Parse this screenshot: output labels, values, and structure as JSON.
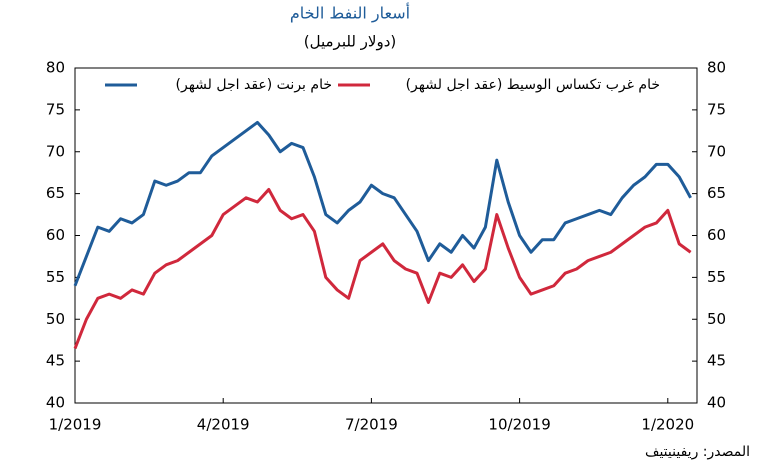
{
  "chart_data": {
    "type": "line",
    "title": "أسعار النفط الخام",
    "subtitle": "(دولار للبرميل)",
    "source": "المصدر: ريفينيتيف",
    "categories": [
      "1/2019",
      null,
      null,
      null,
      null,
      null,
      null,
      null,
      null,
      null,
      null,
      null,
      null,
      "4/2019",
      null,
      null,
      null,
      null,
      null,
      null,
      null,
      null,
      null,
      null,
      null,
      null,
      "7/2019",
      null,
      null,
      null,
      null,
      null,
      null,
      null,
      null,
      null,
      null,
      null,
      null,
      "10/2019",
      null,
      null,
      null,
      null,
      null,
      null,
      null,
      null,
      null,
      null,
      null,
      null,
      "1/2020",
      null,
      null
    ],
    "series": [
      {
        "name": "خام برنت (عقد اجل لشهر)",
        "color": "#1f5c99",
        "values": [
          54,
          57.5,
          61,
          60.5,
          62,
          61.5,
          62.5,
          66.5,
          66,
          66.5,
          67.5,
          67.5,
          69.5,
          70.5,
          71.5,
          72.5,
          73.5,
          72,
          70,
          71,
          70.5,
          67,
          62.5,
          61.5,
          63,
          64,
          66,
          65,
          64.5,
          62.5,
          60.5,
          57,
          59,
          58,
          60,
          58.5,
          61,
          69,
          64,
          60,
          58,
          59.5,
          59.5,
          61.5,
          62,
          62.5,
          63,
          62.5,
          64.5,
          66,
          67,
          68.5,
          68.5,
          67,
          64.5
        ]
      },
      {
        "name": "خام غرب تكساس الوسيط (عقد اجل لشهر)",
        "color": "#d0283c",
        "values": [
          46.5,
          50,
          52.5,
          53,
          52.5,
          53.5,
          53,
          55.5,
          56.5,
          57,
          58,
          59,
          60,
          62.5,
          63.5,
          64.5,
          64,
          65.5,
          63,
          62,
          62.5,
          60.5,
          55,
          53.5,
          52.5,
          57,
          58,
          59,
          57,
          56,
          55.5,
          52,
          55.5,
          55,
          56.5,
          54.5,
          56,
          62.5,
          58.5,
          55,
          53,
          53.5,
          54,
          55.5,
          56,
          57,
          57.5,
          58,
          59,
          60,
          61,
          61.5,
          63,
          59,
          58
        ]
      }
    ],
    "ylim": [
      40,
      80
    ],
    "yticks": [
      40,
      45,
      50,
      55,
      60,
      65,
      70,
      75,
      80
    ],
    "y2lim": [
      40,
      80
    ],
    "y2ticks": [
      40,
      45,
      50,
      55,
      60,
      65,
      70,
      75,
      80
    ]
  }
}
